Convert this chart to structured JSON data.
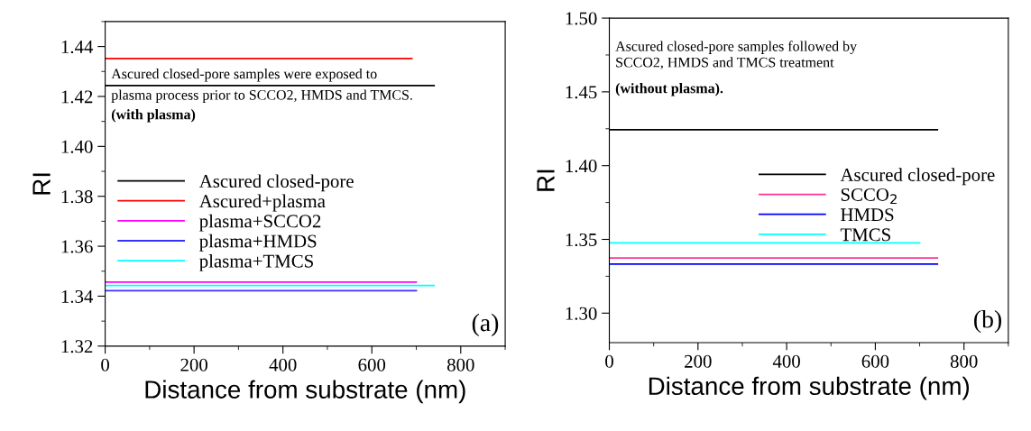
{
  "chart_data": [
    {
      "type": "line",
      "xlabel": "Distance from substrate (nm)",
      "ylabel": "RI",
      "xlim": [
        0,
        900
      ],
      "xticks": [
        0,
        200,
        400,
        600,
        800
      ],
      "ylim": [
        1.32,
        1.45
      ],
      "yticks": [
        {
          "value": 1.32,
          "label": "1.32"
        },
        {
          "value": 1.34,
          "label": "1.34"
        },
        {
          "value": 1.36,
          "label": "1.36"
        },
        {
          "value": 1.38,
          "label": "1.38"
        },
        {
          "value": 1.4,
          "label": "1.40"
        },
        {
          "value": 1.42,
          "label": "1.42"
        },
        {
          "value": 1.44,
          "label": "1.44"
        }
      ],
      "grid": false,
      "legend": "left",
      "marker": "none",
      "line_style": "solid",
      "annotations": [
        "Ascured closed-pore samples were exposed to\nplasma process prior to SCCO2, HMDS and TMCS.",
        "(with plasma)",
        "(a)"
      ],
      "series": [
        {
          "name": "Ascured closed-pore",
          "color": "#000000",
          "x": [
            0,
            740
          ],
          "values": [
            1.4244,
            1.4244
          ]
        },
        {
          "name": "Ascured+plasma",
          "color": "#ff0000",
          "x": [
            0,
            690
          ],
          "values": [
            1.4352,
            1.4352
          ]
        },
        {
          "name": "plasma+SCCO2",
          "color": "#ff00ff",
          "x": [
            0,
            700
          ],
          "values": [
            1.3456,
            1.3456
          ]
        },
        {
          "name": "plasma+HMDS",
          "color": "#3333ff",
          "x": [
            0,
            700
          ],
          "values": [
            1.3422,
            1.3422
          ]
        },
        {
          "name": "plasma+TMCS",
          "color": "#00ffff",
          "x": [
            0,
            740
          ],
          "values": [
            1.3443,
            1.3443
          ]
        }
      ]
    },
    {
      "type": "line",
      "xlabel": "Distance from substrate (nm)",
      "ylabel": "RI",
      "xlim": [
        0,
        900
      ],
      "xticks": [
        0,
        200,
        400,
        600,
        800
      ],
      "ylim": [
        1.28,
        1.5
      ],
      "yticks": [
        {
          "value": 1.3,
          "label": "1.30"
        },
        {
          "value": 1.35,
          "label": "1.35"
        },
        {
          "value": 1.4,
          "label": "1.40"
        },
        {
          "value": 1.45,
          "label": "1.45"
        },
        {
          "value": 1.5,
          "label": "1.50"
        }
      ],
      "grid": false,
      "legend": "right",
      "marker": "none",
      "line_style": "solid",
      "annotations": [
        "Ascured closed-pore samples followed by\nSCCO2, HMDS and TMCS treatment",
        "(without plasma).",
        "(b)"
      ],
      "series": [
        {
          "name": "Ascured closed-pore",
          "color": "#000000",
          "x": [
            0,
            740
          ],
          "values": [
            1.4243,
            1.4243
          ]
        },
        {
          "name": "SCCO$_{2}$",
          "color": "#ff3399",
          "x": [
            0,
            740
          ],
          "values": [
            1.3374,
            1.3374
          ]
        },
        {
          "name": "HMDS",
          "color": "#0000ff",
          "x": [
            0,
            740
          ],
          "values": [
            1.3333,
            1.3333
          ]
        },
        {
          "name": "TMCS",
          "color": "#00ffff",
          "x": [
            0,
            700
          ],
          "values": [
            1.3476,
            1.3476
          ]
        }
      ]
    }
  ]
}
